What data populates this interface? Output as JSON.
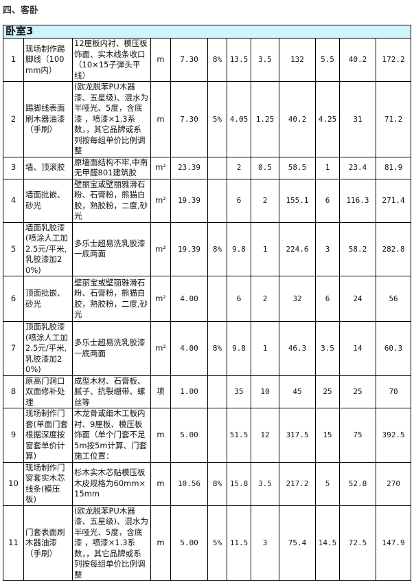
{
  "section_title": "四、客卧",
  "room": "卧室3",
  "rows": [
    {
      "no": "1",
      "name": "现场制作踢脚线（100mm内）",
      "desc": "12厘板内衬、模压板饰面、实木线条收口（10×15子弹头平线）",
      "unit": "m",
      "qty": "7.30",
      "loss": "8%",
      "c1": "13.5",
      "c2": "3.5",
      "c3": "132",
      "c4": "5.5",
      "c5": "40.2",
      "total": "172.2"
    },
    {
      "no": "2",
      "name": "踢脚线表面刷木器油漆（手刷）",
      "desc": "(欧龙脱苯PU木器漆、五星级)、混水为半哑光、5度，含底漆 ，喷漆×1.3系数，，其它品牌或系列按每组单价比例调整",
      "unit": "m",
      "qty": "7.30",
      "loss": "5%",
      "c1": "4.05",
      "c2": "1.25",
      "c3": "40.2",
      "c4": "4.25",
      "c5": "31",
      "total": "71.2"
    },
    {
      "no": "3",
      "name": "墙、顶滚胶",
      "desc": "原墙面结构不牢,中南无甲醛801建筑胶",
      "unit": "m²",
      "qty": "23.39",
      "loss": "",
      "c1": "2",
      "c2": "0.5",
      "c3": "58.5",
      "c4": "1",
      "c5": "23.4",
      "total": "81.9"
    },
    {
      "no": "4",
      "name": "墙面批嵌、砂光",
      "desc": "壁丽宝或壁丽雅滑石粉、石膏粉，熊猫白胶，熟胶粉，二度,砂光",
      "unit": "m²",
      "qty": "19.39",
      "loss": "",
      "c1": "6",
      "c2": "2",
      "c3": "155.1",
      "c4": "6",
      "c5": "116.3",
      "total": "271.4"
    },
    {
      "no": "5",
      "name": "墙面乳胶漆(喷涂人工加2.5元/平米,乳胶漆加20%)",
      "desc": "多乐士超易洗乳胶漆一底两面",
      "unit": "m²",
      "qty": "19.39",
      "loss": "8%",
      "c1": "9.8",
      "c2": "1",
      "c3": "224.6",
      "c4": "3",
      "c5": "58.2",
      "total": "282.8"
    },
    {
      "no": "6",
      "name": "顶面批嵌、砂光",
      "desc": "壁丽宝或壁丽雅滑石粉、石膏粉，熊猫白胶，熟胶粉，二度,砂光",
      "unit": "m²",
      "qty": "4.00",
      "loss": "",
      "c1": "6",
      "c2": "2",
      "c3": "32",
      "c4": "6",
      "c5": "24",
      "total": "56"
    },
    {
      "no": "7",
      "name": "顶面乳胶漆(喷涂人工加2.5元/平米,乳胶漆加20%)",
      "desc": "多乐士超易洗乳胶漆一底两面",
      "unit": "m²",
      "qty": "4.00",
      "loss": "8%",
      "c1": "9.8",
      "c2": "1",
      "c3": "46.3",
      "c4": "3.5",
      "c5": "14",
      "total": "60.3"
    },
    {
      "no": "8",
      "name": "原高门洞口双面修补处理",
      "desc": "成型木材、石膏板、腻子、抗裂绷带、螺丝等",
      "unit": "项",
      "qty": "1.00",
      "loss": "",
      "c1": "35",
      "c2": "10",
      "c3": "45",
      "c4": "25",
      "c5": "25",
      "total": "70"
    },
    {
      "no": "9",
      "name": "现场制作门套(单面门套根据深度按窗套单价计算)",
      "desc": "木龙骨或细木工板内衬、9厘板、模压板饰面（单个门套不足5m按5m计算、门套施工位置：",
      "unit": "m",
      "qty": "5.00",
      "loss": "",
      "c1": "51.5",
      "c2": "12",
      "c3": "317.5",
      "c4": "15",
      "c5": "75",
      "total": "392.5"
    },
    {
      "no": "10",
      "name": "现场制作门窗套实木芯线条(模压板)",
      "desc": "杉木实木芯贴模压板木皮规格为60mm×15mm",
      "unit": "m",
      "qty": "10.56",
      "loss": "8%",
      "c1": "15.8",
      "c2": "3.5",
      "c3": "217.2",
      "c4": "5",
      "c5": "52.8",
      "total": "270"
    },
    {
      "no": "11",
      "name": "门套表面刷木器油漆（手刷）",
      "desc": "(欧龙脱苯PU木器漆、五星级)、混水为半哑光、5度，含底漆 ，喷漆×1.3系数，，其它品牌或系列按每组单价比例调整",
      "unit": "m",
      "qty": "5.00",
      "loss": "5%",
      "c1": "11.5",
      "c2": "3",
      "c3": "75.4",
      "c4": "14.5",
      "c5": "72.5",
      "total": "147.9"
    }
  ]
}
